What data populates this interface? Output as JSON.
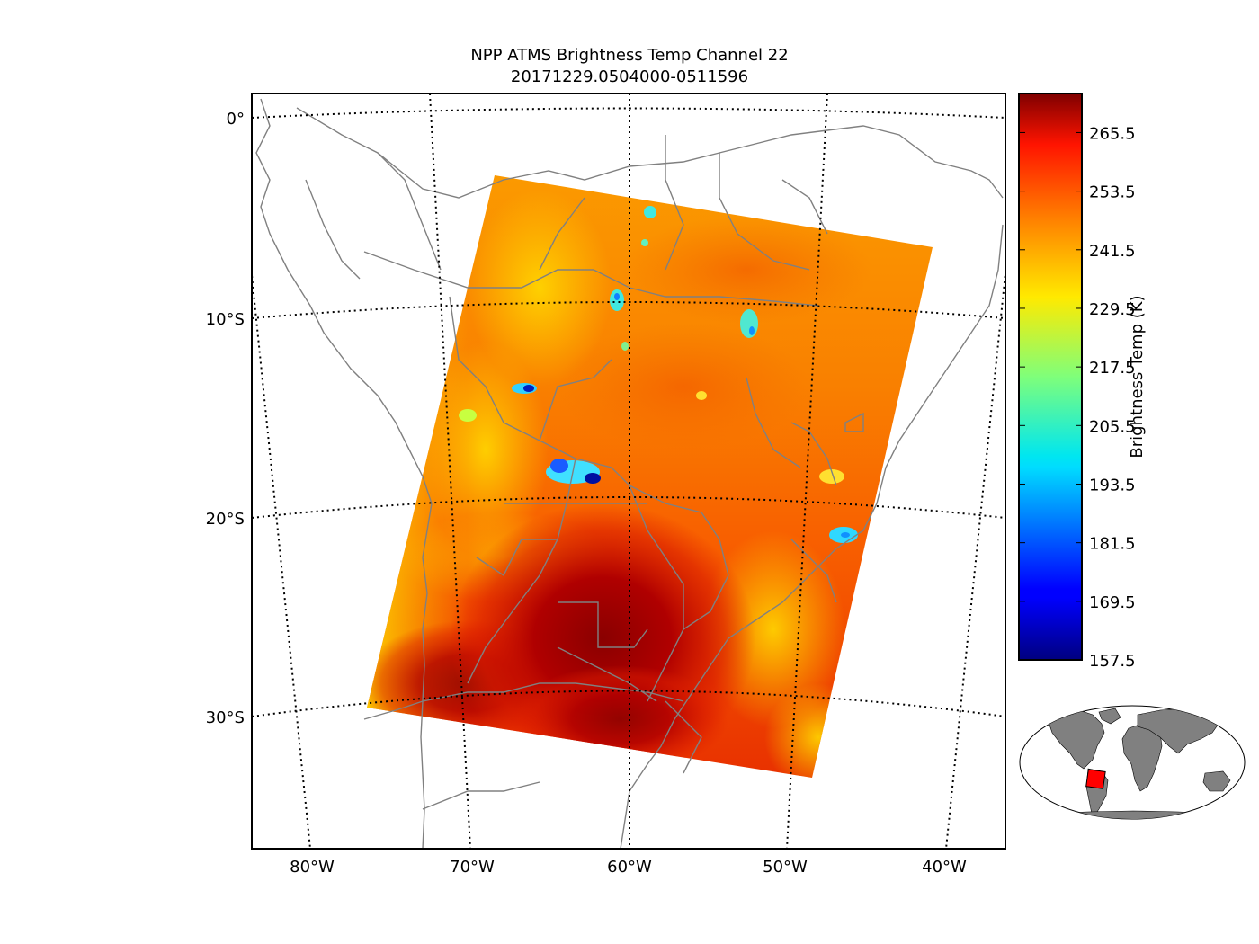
{
  "title": {
    "line1": "NPP ATMS Brightness Temp Channel 22",
    "line2": "20171229.0504000-0511596"
  },
  "map": {
    "latitude_labels": [
      "0°",
      "10°S",
      "20°S",
      "30°S"
    ],
    "longitude_labels": [
      "80°W",
      "70°W",
      "60°W",
      "50°W",
      "40°W"
    ],
    "graticule_style": "dotted",
    "coastline_color": "#808080"
  },
  "colorbar": {
    "label": "Brightness Temp (K)",
    "colormap": "jet",
    "min": 157.5,
    "max": 273.5,
    "tick_labels": [
      "157.5",
      "169.5",
      "181.5",
      "193.5",
      "205.5",
      "217.5",
      "229.5",
      "241.5",
      "253.5",
      "265.5"
    ]
  },
  "inset": {
    "land_color": "#808080",
    "highlight_color": "#ff0000"
  }
}
